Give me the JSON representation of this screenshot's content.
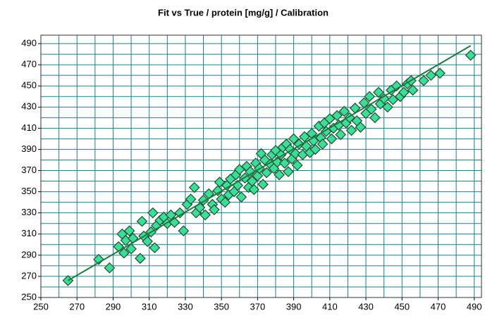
{
  "chart_data": {
    "type": "scatter",
    "title": "Fit vs True  /  protein [mg/g]  /  Calibration",
    "xlim": [
      250,
      494
    ],
    "ylim": [
      250,
      498
    ],
    "xticks": [
      250,
      270,
      290,
      310,
      330,
      350,
      370,
      390,
      410,
      430,
      450,
      470,
      490
    ],
    "yticks": [
      250,
      270,
      290,
      310,
      330,
      350,
      370,
      390,
      410,
      430,
      450,
      470,
      490
    ],
    "xminor": [
      260,
      280,
      300,
      320,
      340,
      360,
      380,
      400,
      420,
      440,
      460,
      480
    ],
    "yminor": [
      260,
      280,
      300,
      320,
      340,
      360,
      380,
      400,
      420,
      440,
      460,
      480
    ],
    "grid": true,
    "grid_color": "#1c7f8f",
    "color": "#3ddc97",
    "edge_color": "#1d4d34",
    "fit_line": {
      "x": [
        265,
        488
      ],
      "y": [
        266,
        488
      ],
      "color": "#1e7a3c"
    },
    "x": [
      265,
      282,
      288,
      293,
      295,
      296,
      297,
      299,
      300,
      301,
      305,
      306,
      307,
      309,
      311,
      312,
      313,
      314,
      316,
      318,
      320,
      322,
      324,
      327,
      329,
      331,
      333,
      335,
      336,
      338,
      340,
      341,
      343,
      345,
      346,
      348,
      349,
      350,
      352,
      353,
      354,
      355,
      357,
      358,
      359,
      360,
      361,
      363,
      364,
      365,
      366,
      367,
      368,
      369,
      370,
      371,
      372,
      373,
      374,
      375,
      377,
      378,
      379,
      380,
      381,
      382,
      383,
      384,
      385,
      386,
      387,
      388,
      389,
      390,
      391,
      392,
      393,
      395,
      396,
      397,
      399,
      400,
      401,
      402,
      404,
      405,
      406,
      407,
      408,
      410,
      411,
      412,
      414,
      415,
      416,
      418,
      419,
      421,
      422,
      424,
      425,
      427,
      429,
      430,
      432,
      433,
      435,
      437,
      438,
      440,
      442,
      444,
      445,
      447,
      449,
      451,
      453,
      455,
      456,
      462,
      466,
      471,
      488
    ],
    "y": [
      266,
      286,
      278,
      298,
      310,
      292,
      304,
      313,
      296,
      306,
      287,
      322,
      308,
      303,
      312,
      330,
      297,
      318,
      323,
      326,
      320,
      328,
      321,
      330,
      313,
      338,
      343,
      354,
      330,
      335,
      342,
      328,
      348,
      338,
      333,
      351,
      359,
      343,
      340,
      356,
      347,
      362,
      350,
      366,
      356,
      371,
      345,
      363,
      374,
      354,
      369,
      360,
      352,
      377,
      365,
      372,
      386,
      357,
      380,
      368,
      376,
      385,
      372,
      389,
      378,
      366,
      385,
      392,
      377,
      395,
      369,
      390,
      381,
      400,
      386,
      375,
      395,
      385,
      402,
      393,
      387,
      405,
      398,
      390,
      412,
      401,
      395,
      415,
      407,
      419,
      400,
      410,
      422,
      413,
      404,
      426,
      415,
      420,
      408,
      429,
      417,
      411,
      434,
      424,
      440,
      428,
      420,
      444,
      433,
      438,
      430,
      446,
      437,
      450,
      440,
      444,
      452,
      455,
      446,
      455,
      460,
      462,
      479
    ]
  }
}
